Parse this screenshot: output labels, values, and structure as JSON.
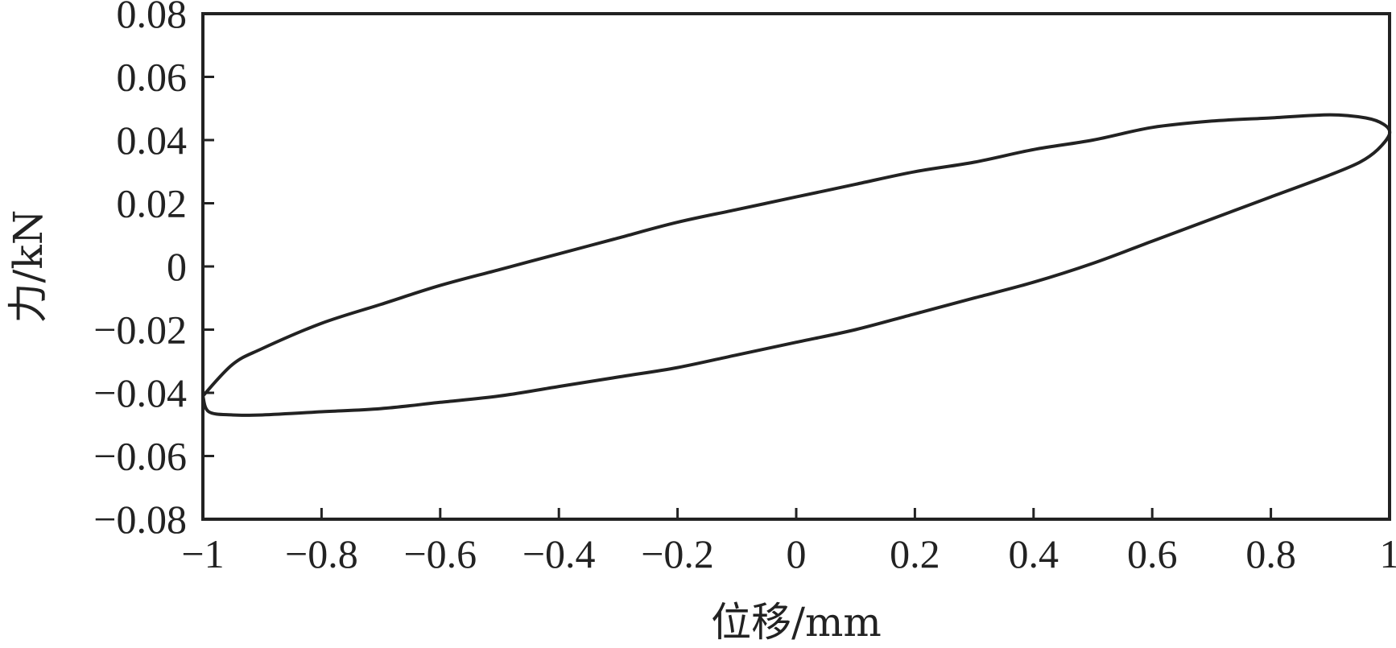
{
  "chart_data": {
    "type": "line",
    "title": "",
    "xlabel": "位移/mm",
    "ylabel": "力/kN",
    "xlim": [
      -1,
      1
    ],
    "ylim": [
      -0.08,
      0.08
    ],
    "x_ticks": [
      -1,
      -0.8,
      -0.6,
      -0.4,
      -0.2,
      0,
      0.2,
      0.4,
      0.6,
      0.8,
      1
    ],
    "x_tick_labels": [
      "−1",
      "−0.8",
      "−0.6",
      "−0.4",
      "−0.2",
      "0",
      "0.2",
      "0.4",
      "0.6",
      "0.8",
      "1"
    ],
    "y_ticks": [
      0.08,
      0.06,
      0.04,
      0.02,
      0,
      -0.02,
      -0.04,
      -0.06,
      -0.08
    ],
    "y_tick_labels": [
      "0.08",
      "0.06",
      "0.04",
      "0.02",
      "0",
      "−0.02",
      "−0.04",
      "−0.06",
      "−0.08"
    ],
    "grid": false,
    "legend": "none",
    "line_color": "#222222",
    "series": [
      {
        "x": [
          -1.0,
          -0.95,
          -0.9,
          -0.8,
          -0.7,
          -0.6,
          -0.5,
          -0.4,
          -0.3,
          -0.2,
          -0.1,
          0.0,
          0.1,
          0.2,
          0.3,
          0.4,
          0.5,
          0.6,
          0.7,
          0.8,
          0.9,
          0.96,
          0.99,
          1.0,
          0.98,
          0.95,
          0.9,
          0.8,
          0.7,
          0.6,
          0.5,
          0.4,
          0.3,
          0.2,
          0.1,
          0.0,
          -0.1,
          -0.2,
          -0.3,
          -0.4,
          -0.5,
          -0.6,
          -0.7,
          -0.8,
          -0.9,
          -0.95,
          -0.99,
          -1.0
        ],
        "y": [
          -0.041,
          -0.031,
          -0.026,
          -0.018,
          -0.012,
          -0.006,
          -0.001,
          0.004,
          0.009,
          0.014,
          0.018,
          0.022,
          0.026,
          0.03,
          0.033,
          0.037,
          0.04,
          0.044,
          0.046,
          0.047,
          0.048,
          0.047,
          0.045,
          0.042,
          0.037,
          0.033,
          0.029,
          0.022,
          0.015,
          0.008,
          0.001,
          -0.005,
          -0.01,
          -0.015,
          -0.02,
          -0.024,
          -0.028,
          -0.032,
          -0.035,
          -0.038,
          -0.041,
          -0.043,
          -0.045,
          -0.046,
          -0.047,
          -0.047,
          -0.046,
          -0.041
        ]
      }
    ]
  }
}
